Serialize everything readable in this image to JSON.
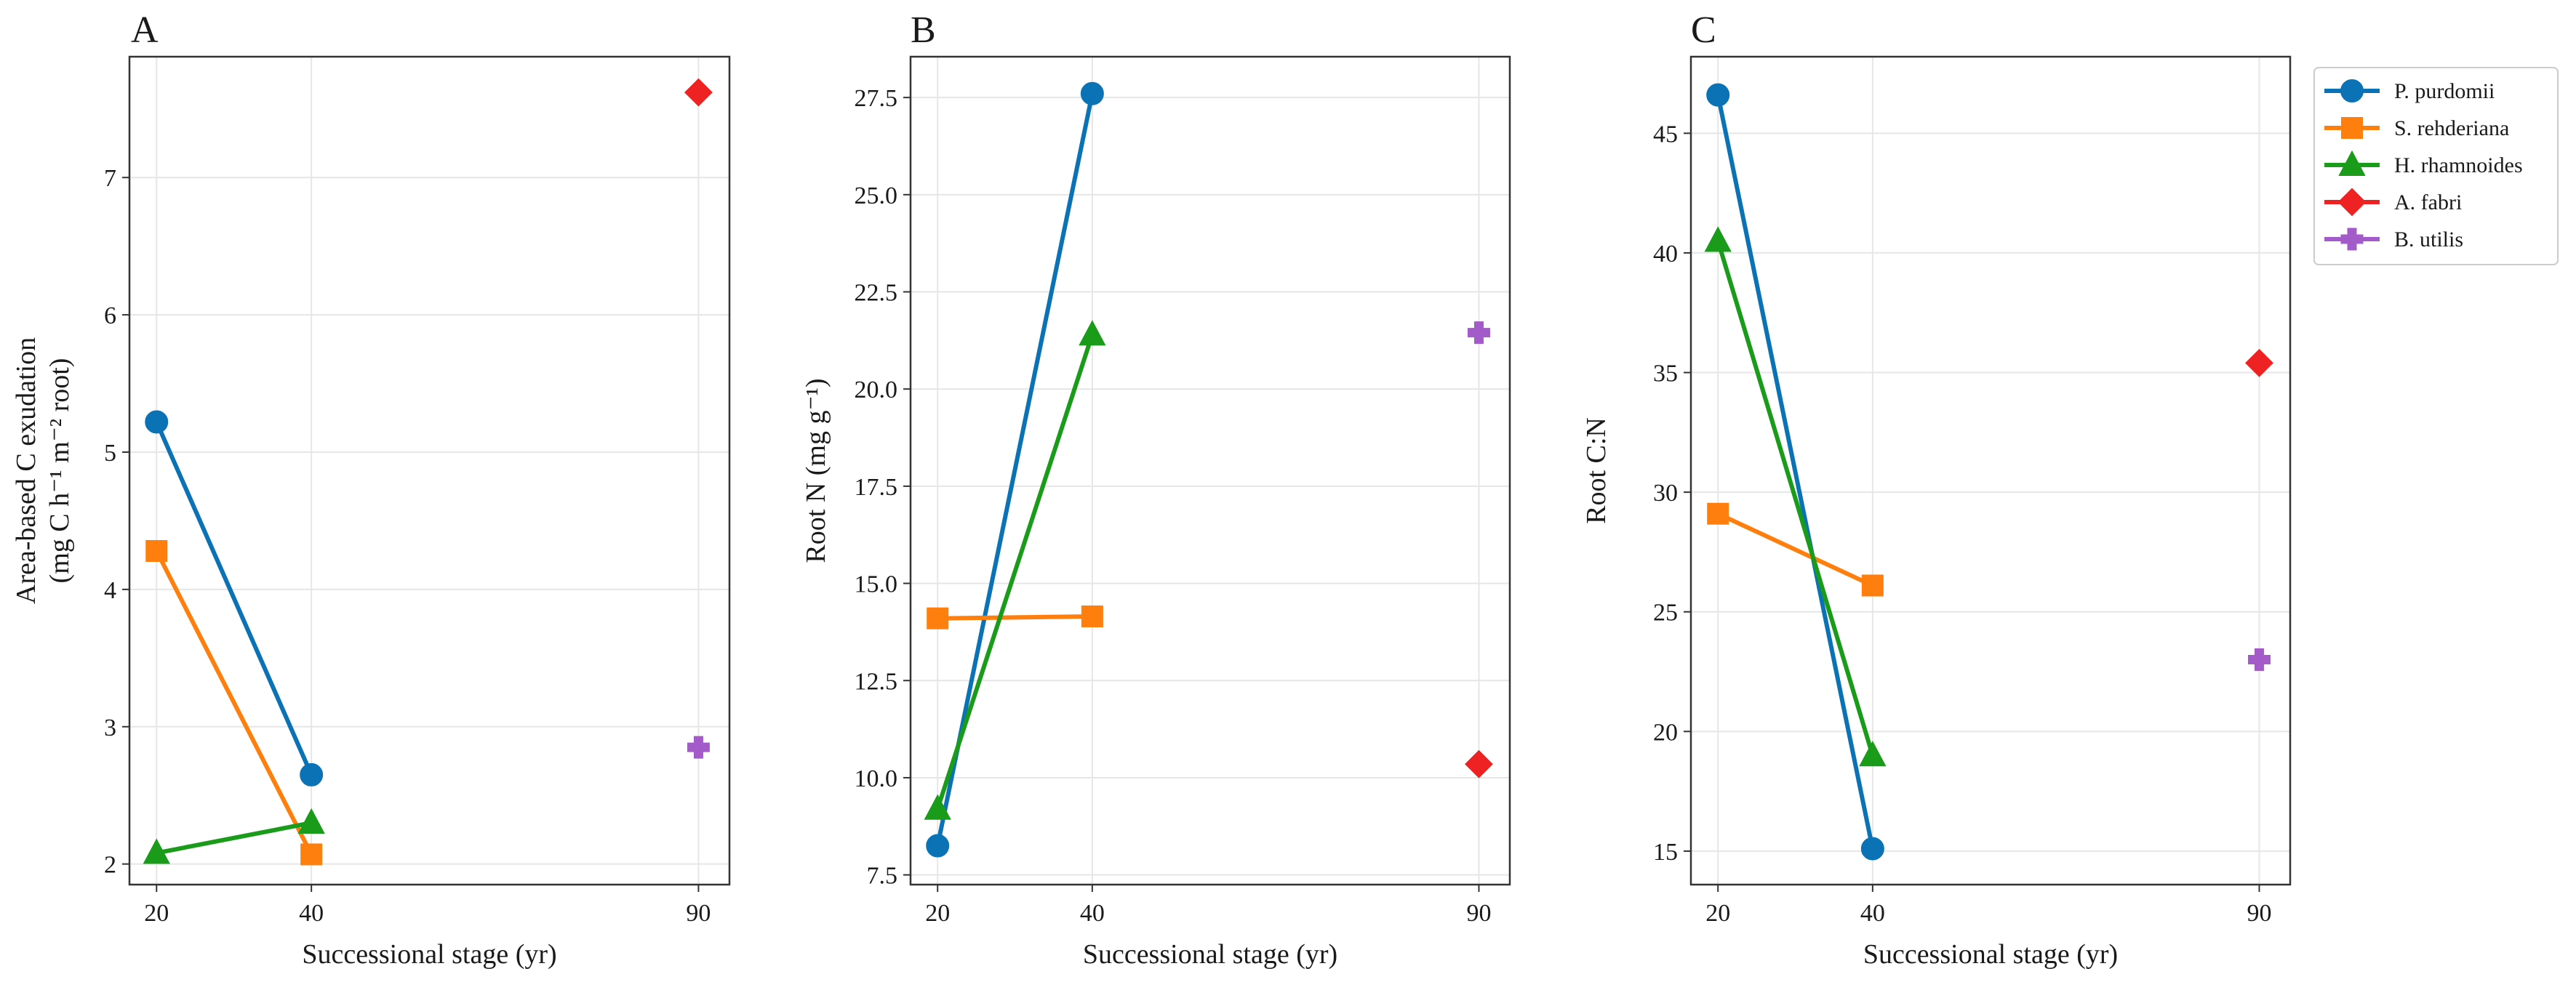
{
  "chart_data": [
    {
      "type": "line",
      "panel": "A",
      "title": "",
      "xlabel": "Successional stage (yr)",
      "ylabel_line1": "Area-based C exudation",
      "ylabel_line2": "(mg C h⁻¹ m⁻² root)",
      "xlim": [
        16.5,
        94
      ],
      "ylim": [
        1.85,
        7.88
      ],
      "xticks": [
        20,
        40,
        90
      ],
      "yticks": [
        2,
        3,
        4,
        5,
        6,
        7
      ],
      "ytick_labels": [
        "2",
        "3",
        "4",
        "5",
        "6",
        "7"
      ],
      "grid": true,
      "series": [
        {
          "name": "P. purdomii",
          "x": [
            20,
            40
          ],
          "y": [
            5.22,
            2.65
          ]
        },
        {
          "name": "S. rehderiana",
          "x": [
            20,
            40
          ],
          "y": [
            4.28,
            2.07
          ]
        },
        {
          "name": "H. rhamnoides",
          "x": [
            20,
            40
          ],
          "y": [
            2.08,
            2.3
          ]
        },
        {
          "name": "A. fabri",
          "x": [
            90
          ],
          "y": [
            7.62
          ]
        },
        {
          "name": "B. utilis",
          "x": [
            90
          ],
          "y": [
            2.85
          ]
        }
      ]
    },
    {
      "type": "line",
      "panel": "B",
      "title": "",
      "xlabel": "Successional stage (yr)",
      "ylabel_line1": "Root N (mg g⁻¹)",
      "ylabel_line2": "",
      "xlim": [
        16.5,
        94
      ],
      "ylim": [
        7.25,
        28.55
      ],
      "xticks": [
        20,
        40,
        90
      ],
      "yticks": [
        7.5,
        10.0,
        12.5,
        15.0,
        17.5,
        20.0,
        22.5,
        25.0,
        27.5
      ],
      "ytick_labels": [
        "7.5",
        "10.0",
        "12.5",
        "15.0",
        "17.5",
        "20.0",
        "22.5",
        "25.0",
        "27.5"
      ],
      "grid": true,
      "series": [
        {
          "name": "P. purdomii",
          "x": [
            20,
            40
          ],
          "y": [
            8.25,
            27.6
          ]
        },
        {
          "name": "S. rehderiana",
          "x": [
            20,
            40
          ],
          "y": [
            14.1,
            14.15
          ]
        },
        {
          "name": "H. rhamnoides",
          "x": [
            20,
            40
          ],
          "y": [
            9.2,
            21.4
          ]
        },
        {
          "name": "A. fabri",
          "x": [
            90
          ],
          "y": [
            10.35
          ]
        },
        {
          "name": "B. utilis",
          "x": [
            90
          ],
          "y": [
            21.45
          ]
        }
      ]
    },
    {
      "type": "line",
      "panel": "C",
      "title": "",
      "xlabel": "Successional stage (yr)",
      "ylabel_line1": "Root C:N",
      "ylabel_line2": "",
      "xlim": [
        16.5,
        94
      ],
      "ylim": [
        13.6,
        48.2
      ],
      "xticks": [
        20,
        40,
        90
      ],
      "yticks": [
        15,
        20,
        25,
        30,
        35,
        40,
        45
      ],
      "ytick_labels": [
        "15",
        "20",
        "25",
        "30",
        "35",
        "40",
        "45"
      ],
      "grid": true,
      "series": [
        {
          "name": "P. purdomii",
          "x": [
            20,
            40
          ],
          "y": [
            46.6,
            15.1
          ]
        },
        {
          "name": "S. rehderiana",
          "x": [
            20,
            40
          ],
          "y": [
            29.1,
            26.1
          ]
        },
        {
          "name": "H. rhamnoides",
          "x": [
            20,
            40
          ],
          "y": [
            40.5,
            19.0
          ]
        },
        {
          "name": "A. fabri",
          "x": [
            90
          ],
          "y": [
            35.4
          ]
        },
        {
          "name": "B. utilis",
          "x": [
            90
          ],
          "y": [
            23.0
          ]
        }
      ]
    }
  ],
  "legend": {
    "placement": "outside-right-top",
    "items": [
      {
        "label": "P. purdomii",
        "color": "#1f77b4",
        "marker": "circle"
      },
      {
        "label": "S. rehderiana",
        "color": "#ff7f0e",
        "marker": "square"
      },
      {
        "label": "H. rhamnoides",
        "color": "#2ca02c",
        "marker": "triangle"
      },
      {
        "label": "A. fabri",
        "color": "#d62728",
        "marker": "diamond"
      },
      {
        "label": "B. utilis",
        "color": "#9467bd",
        "marker": "plus"
      }
    ]
  },
  "series_styles": {
    "P. purdomii": {
      "color": "#0a72b5",
      "marker": "circle"
    },
    "S. rehderiana": {
      "color": "#ff7f0e",
      "marker": "square"
    },
    "H. rhamnoides": {
      "color": "#1a9c1a",
      "marker": "triangle"
    },
    "A. fabri": {
      "color": "#ee2222",
      "marker": "diamond"
    },
    "B. utilis": {
      "color": "#a35bc9",
      "marker": "plus"
    }
  }
}
